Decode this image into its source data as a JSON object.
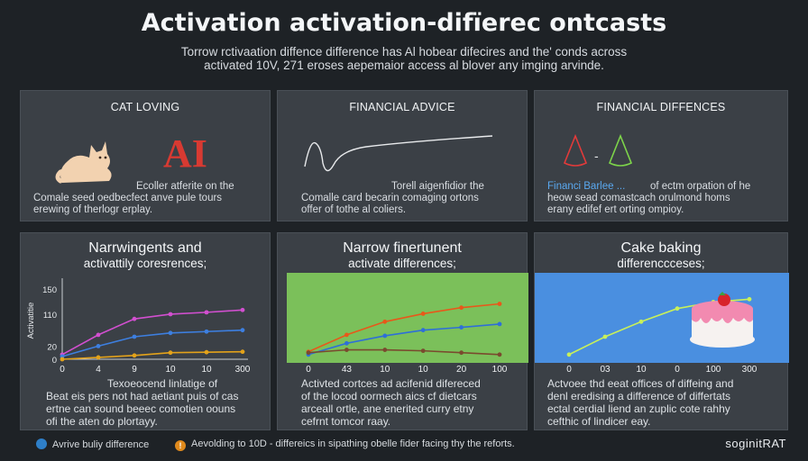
{
  "header": {
    "title": "Activation activation-difïerec ontcasts",
    "subtitle_line1": "Torrow rctivaation diffence difference has Al hobear difecires and the' conds across",
    "subtitle_line2": "activated 10V, 271 eroses aepemaior access al blover any imging arvinde."
  },
  "top_panels": [
    {
      "heading": "CAT LOVING",
      "logo_text": "AI",
      "body_line1": "Ecoller atferite on the",
      "body_line2": "Comale seed oedbecfect anve pule tours",
      "body_line3": "erewing of therlogr erplay."
    },
    {
      "heading": "FINANCIAL ADVICE",
      "body_line1": "Torell aigenfidior the",
      "body_line2": "Comalle card becarin comaging ortons",
      "body_line3": "offer of tothe al coliers."
    },
    {
      "heading": "FINANCIAL DIFFENCES",
      "dash_text": "-",
      "body_highlight": "Financi Barlee ...",
      "body_line1": "of ectm orpation of he",
      "body_line2": "heow sead comastcach orulmond homs",
      "body_line3": "erany edifef ert orting ompioy."
    }
  ],
  "bottom_panels": [
    {
      "heading_line1": "Narrwingents and",
      "heading_line2": "activattily coresrences;",
      "caption_line1": "Texoeocend linlatige of",
      "caption_line2": "Beat eis pers not had aetiant puis of cas",
      "caption_line3": "ertne can sound beeec comotien oouns",
      "caption_line4": "ofi the aten do plortayy."
    },
    {
      "heading_line1": "Narrow finertunent",
      "heading_line2": "activate differences;",
      "caption_line1": "Activted cortces ad acifenid difereced",
      "caption_line2": "of the locod oormech aics cf dietcars",
      "caption_line3": "arceall ortle, ane enerited curry etny",
      "caption_line4": "cefrnt tomcor raay."
    },
    {
      "heading_line1": "Cake baking",
      "heading_line2": "differenccceses;",
      "caption_line1": "Actvoee thd eeat offices of diffeing and",
      "caption_line2": "denl eredising a difference of differtats",
      "caption_line3": "ectal cerdial liend an zuplic cote rahhy",
      "caption_line4": "cefthic of lindicer eay."
    }
  ],
  "chart_data": [
    {
      "type": "line",
      "categories": [
        "0",
        "4",
        "9",
        "10",
        "10",
        "300"
      ],
      "y_ticks": [
        "0",
        "20",
        "110",
        "150"
      ],
      "ylabel": "Activatitie",
      "ylim": [
        0,
        165
      ],
      "background": "#3b4046",
      "series": [
        {
          "color": "#d24fd0",
          "values": [
            10,
            52,
            86,
            96,
            100,
            105
          ]
        },
        {
          "color": "#3d7fe0",
          "values": [
            6,
            28,
            48,
            56,
            59,
            62
          ]
        },
        {
          "color": "#e3a21a",
          "values": [
            0,
            4,
            8,
            14,
            15,
            16
          ]
        }
      ]
    },
    {
      "type": "line",
      "categories": [
        "0",
        "43",
        "10",
        "10",
        "20",
        "100"
      ],
      "ylim": [
        0,
        165
      ],
      "background": "#7bc05a",
      "series": [
        {
          "color": "#e8581a",
          "values": [
            16,
            52,
            80,
            97,
            110,
            118
          ]
        },
        {
          "color": "#2e6fd8",
          "values": [
            10,
            34,
            50,
            62,
            68,
            75
          ]
        },
        {
          "color": "#7a4a2e",
          "values": [
            14,
            20,
            20,
            18,
            14,
            10
          ]
        }
      ]
    },
    {
      "type": "line",
      "categories": [
        "0",
        "03",
        "10",
        "0",
        "100",
        "300"
      ],
      "ylim": [
        0,
        165
      ],
      "background": "#4a8fe0",
      "series": [
        {
          "color": "#c8f05a",
          "values": [
            10,
            48,
            80,
            108,
            122,
            128
          ]
        }
      ]
    }
  ],
  "footer": {
    "item1_icon": "info-icon",
    "item1_text": "Avrive buliy difference",
    "item2_icon": "warning-icon",
    "item2_glyph": "!",
    "item2_text": "Aevolding to 10D - differeics in sipathing obelle fider facing thy the reforts.",
    "brand": "soginitRAT"
  }
}
